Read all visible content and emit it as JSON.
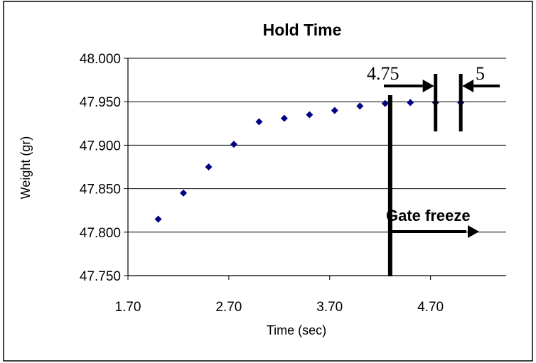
{
  "chart_data": {
    "type": "scatter",
    "title": "Hold Time",
    "xlabel": "Time (sec)",
    "ylabel": "Weight (gr)",
    "xlim": [
      1.7,
      5.45
    ],
    "ylim": [
      47.75,
      48.0
    ],
    "x_ticks": [
      "1.70",
      "2.70",
      "3.70",
      "4.70"
    ],
    "x_tick_values": [
      1.7,
      2.7,
      3.7,
      4.7
    ],
    "y_ticks": [
      "47.750",
      "47.800",
      "47.850",
      "47.900",
      "47.950",
      "48.000"
    ],
    "y_tick_values": [
      47.75,
      47.8,
      47.85,
      47.9,
      47.95,
      48.0
    ],
    "grid": "horizontal",
    "marker_color": "#000080",
    "series": [
      {
        "points": [
          {
            "x": 2.0,
            "y": 47.815
          },
          {
            "x": 2.25,
            "y": 47.845
          },
          {
            "x": 2.5,
            "y": 47.875
          },
          {
            "x": 2.75,
            "y": 47.901
          },
          {
            "x": 3.0,
            "y": 47.927
          },
          {
            "x": 3.25,
            "y": 47.931
          },
          {
            "x": 3.5,
            "y": 47.935
          },
          {
            "x": 3.75,
            "y": 47.94
          },
          {
            "x": 4.0,
            "y": 47.945
          },
          {
            "x": 4.25,
            "y": 47.948
          },
          {
            "x": 4.5,
            "y": 47.949
          },
          {
            "x": 4.75,
            "y": 47.949
          },
          {
            "x": 5.0,
            "y": 47.949
          }
        ]
      }
    ],
    "annotations": {
      "gate_freeze_label": "Gate freeze",
      "gate_freeze_x": 4.3,
      "marker_a_label": "4.75",
      "marker_a_x": 4.75,
      "marker_b_label": "5",
      "marker_b_x": 5.0
    }
  }
}
